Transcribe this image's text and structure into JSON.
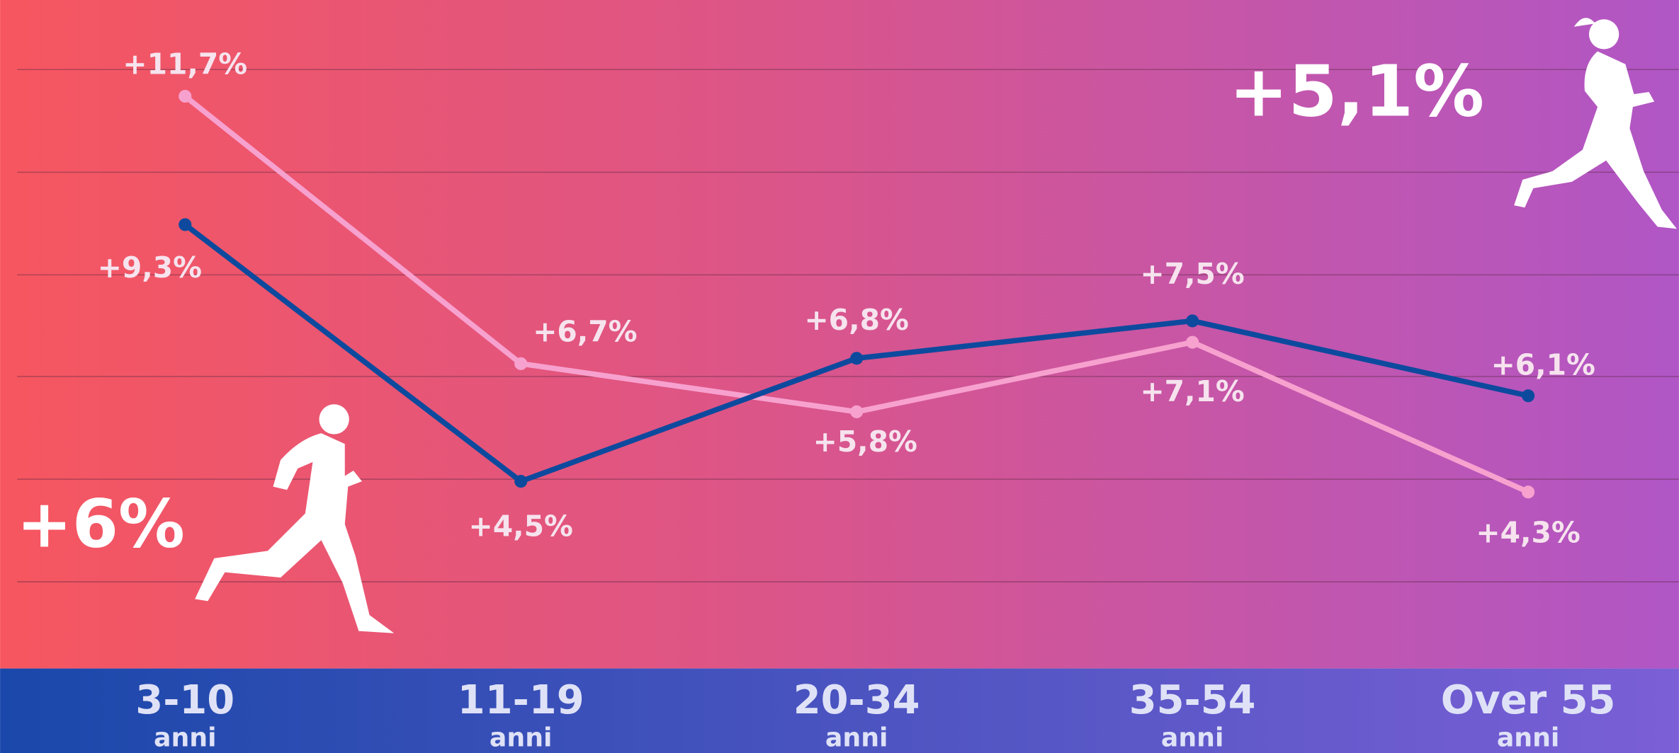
{
  "chart_data": {
    "type": "line",
    "categories": [
      "3-10 anni",
      "11-19 anni",
      "20-34 anni",
      "35-54 anni",
      "Over 55 anni"
    ],
    "series": [
      {
        "color": "#f7a1cf",
        "values": [
          11.7,
          6.7,
          5.8,
          7.1,
          4.3
        ],
        "value_labels": [
          "+11,7%",
          "+6,7%",
          "+5,8%",
          "+7,1%",
          "+4,3%"
        ]
      },
      {
        "color": "#0d4a9e",
        "values": [
          9.3,
          4.5,
          6.8,
          7.5,
          6.1
        ],
        "value_labels": [
          "+9,3%",
          "+4,5%",
          "+6,8%",
          "+7,5%",
          "+6,1%"
        ]
      }
    ],
    "ylim": [
      1,
      13.5
    ],
    "annotations": [
      "+6%",
      "+5,1%"
    ]
  }
}
